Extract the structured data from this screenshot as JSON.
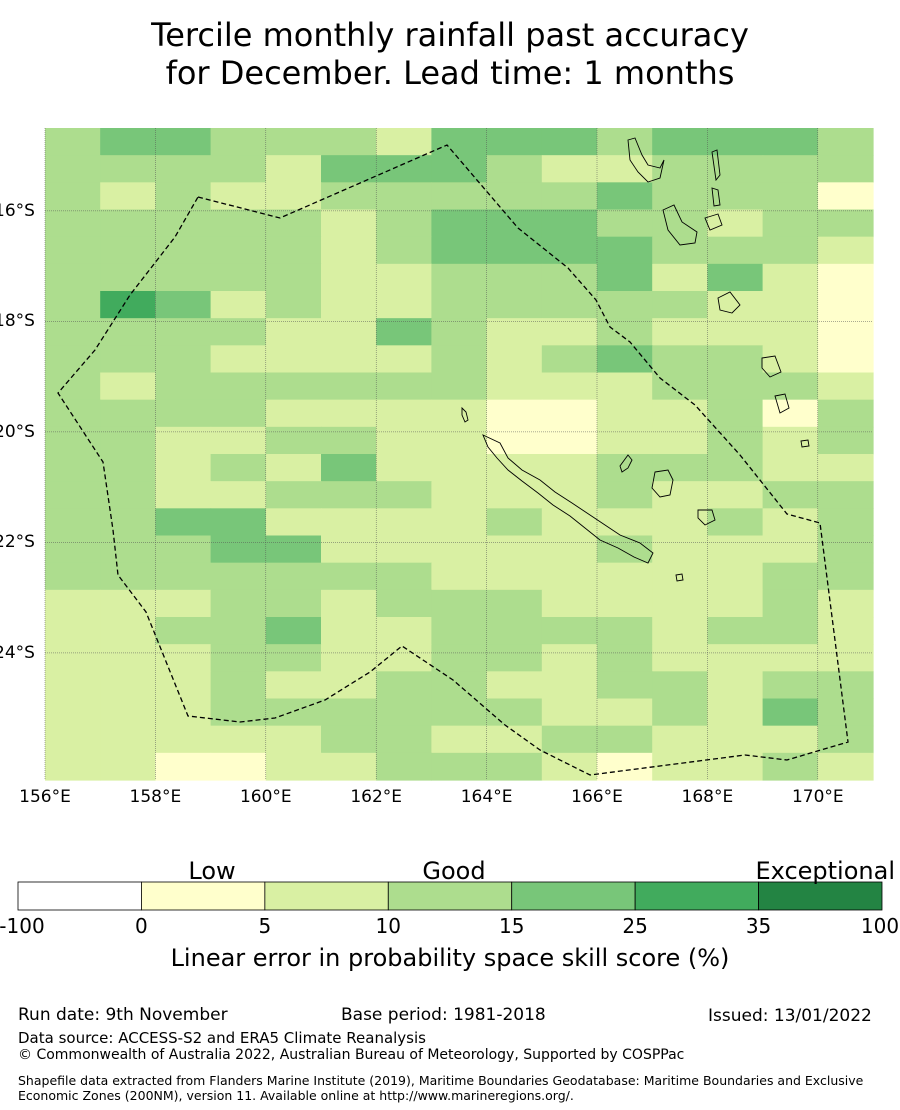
{
  "title": {
    "line1": "Tercile monthly rainfall past accuracy",
    "line2": "for December. Lead time: 1 months"
  },
  "map": {
    "lon_labels": [
      "156°E",
      "158°E",
      "160°E",
      "162°E",
      "164°E",
      "166°E",
      "168°E",
      "170°E"
    ],
    "lon_values": [
      156,
      158,
      160,
      162,
      164,
      166,
      168,
      170
    ],
    "lat_labels": [
      "16°S",
      "18°S",
      "20°S",
      "22°S",
      "24°S"
    ],
    "lat_values": [
      -16,
      -18,
      -20,
      -22,
      -24
    ],
    "extent": {
      "lon_min": 156,
      "lon_max": 171,
      "lat_min": -26.3,
      "lat_max": -14.5
    },
    "grid_rows_levels": [
      "344333244434443",
      "333324443223333",
      "323223333343331",
      "333332344433233",
      "333332344443332",
      "333332233342421",
      "354232233333221",
      "333322432232221",
      "333222232343321",
      "323333332223332",
      "333322221122313",
      "332233221122323",
      "332324222233322",
      "332233322232233",
      "334422223222323",
      "333442222232223",
      "333333322222233",
      "222332333222232",
      "223342233332332",
      "222332233232222",
      "222322332233233",
      "222333333223243",
      "222223322332223",
      "221122333212232"
    ],
    "palette": {
      "0": "#ffffff",
      "1": "#ffffcc",
      "2": "#d9f0a3",
      "3": "#addd8e",
      "4": "#78c679",
      "5": "#41ab5d",
      "6": "#238443"
    }
  },
  "colorbar": {
    "category_labels": [
      "Low",
      "Good",
      "Exceptional"
    ],
    "ticks": [
      "-100",
      "0",
      "5",
      "10",
      "15",
      "25",
      "35",
      "100"
    ],
    "title": "Linear error in probability space skill score (%)"
  },
  "footer": {
    "run_date": "Run date: 9th November",
    "base_period": "Base period: 1981-2018",
    "issued": "Issued: 13/01/2022",
    "data_source": "Data source: ACCESS-S2 and ERA5 Climate Reanalysis",
    "copyright": "© Commonwealth of Australia 2022, Australian Bureau of Meteorology, Supported by COSPPac",
    "shapefile": "Shapefile data extracted from Flanders Marine Institute (2019), Maritime Boundaries Geodatabase: Maritime Boundaries and Exclusive Economic Zones (200NM), version 11. Available online at http://www.marineregions.org/."
  }
}
